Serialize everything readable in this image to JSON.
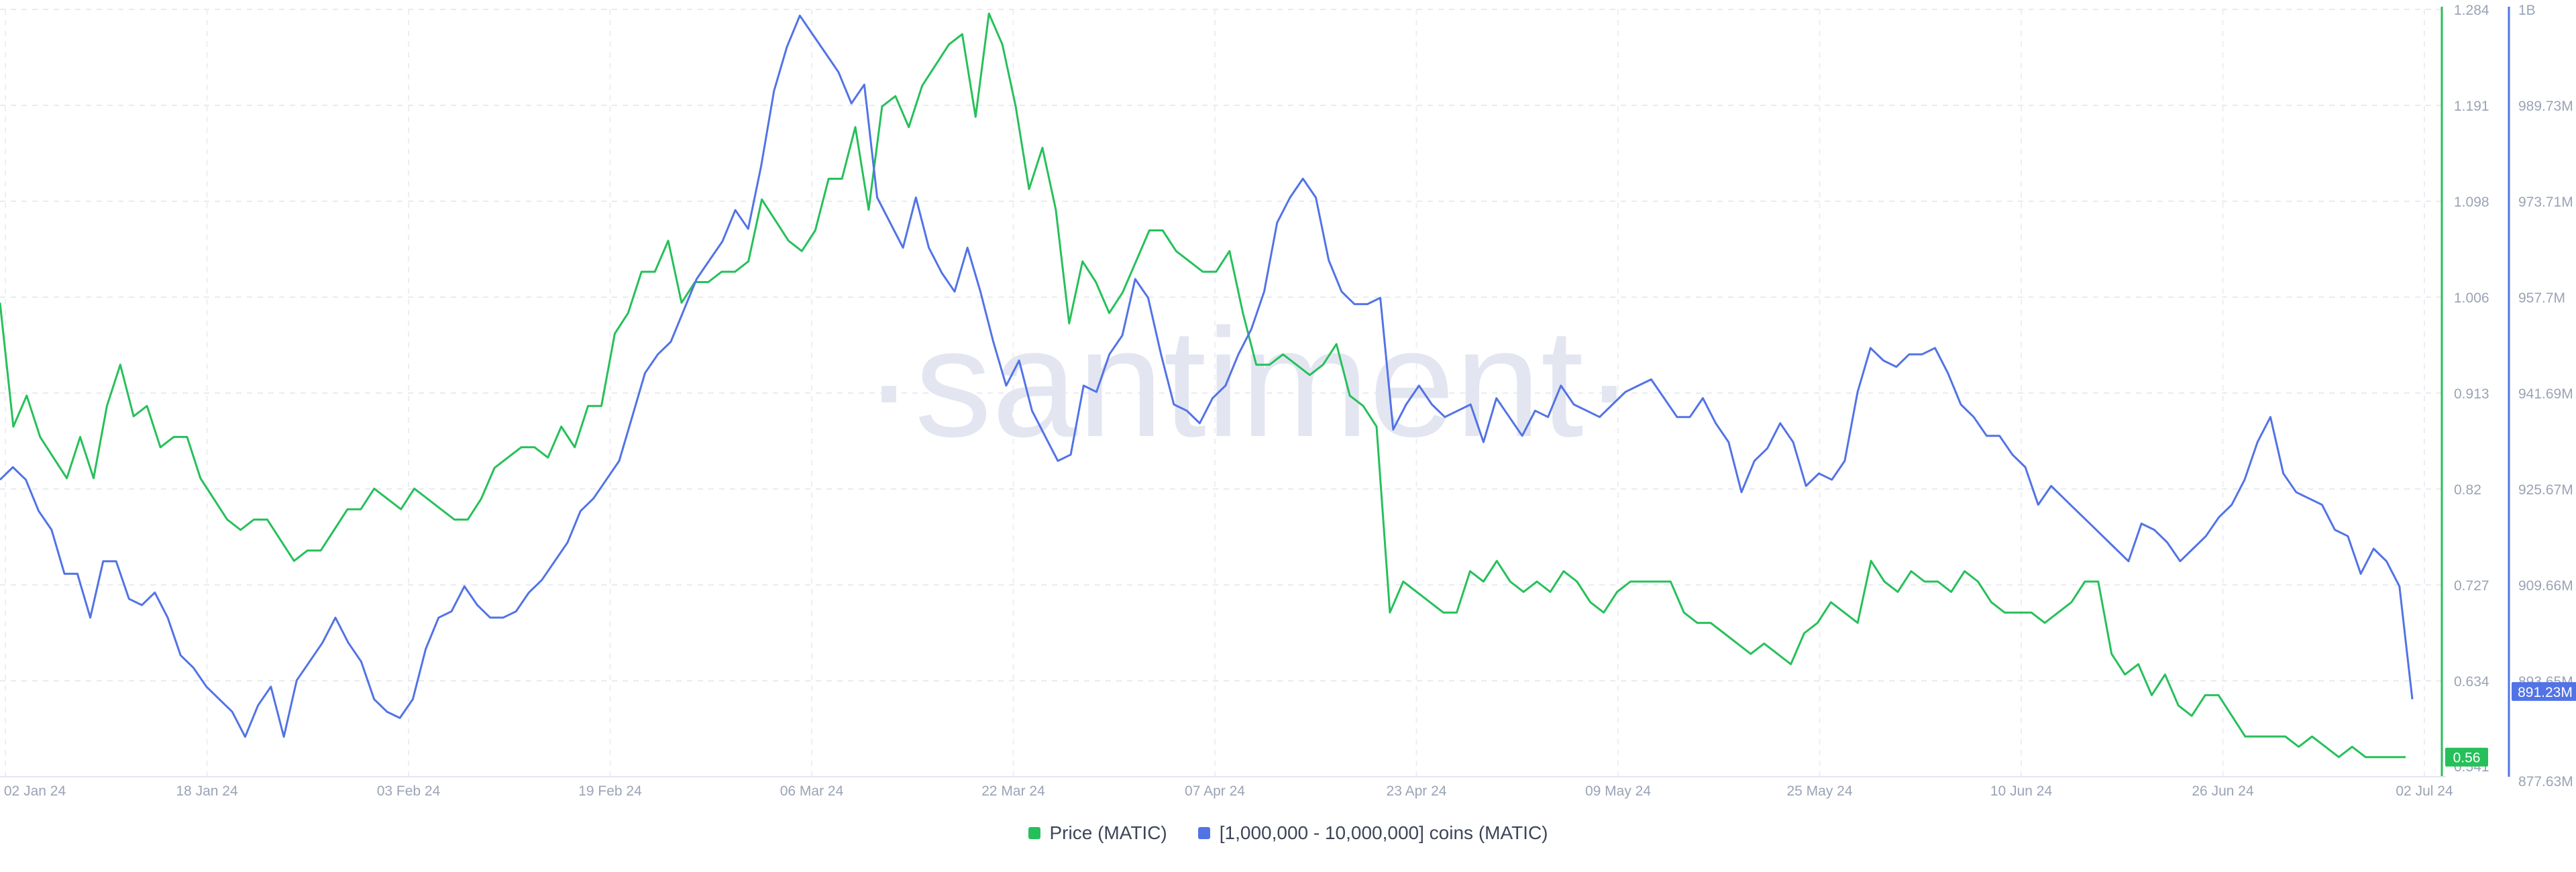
{
  "chart_data": {
    "type": "line",
    "watermark": "·santiment·",
    "x_tick_labels": [
      "02 Jan 24",
      "18 Jan 24",
      "03 Feb 24",
      "19 Feb 24",
      "06 Mar 24",
      "22 Mar 24",
      "07 Apr 24",
      "23 Apr 24",
      "09 May 24",
      "25 May 24",
      "10 Jun 24",
      "26 Jun 24",
      "02 Jul 24"
    ],
    "price_axis": {
      "ticks": [
        "1.284",
        "1.191",
        "1.098",
        "1.006",
        "0.913",
        "0.82",
        "0.727",
        "0.634",
        "0.541"
      ],
      "min": 0.541,
      "max": 1.284,
      "color": "#26c05a"
    },
    "holders_axis": {
      "ticks": [
        "1B",
        "989.73M",
        "973.71M",
        "957.7M",
        "941.69M",
        "925.67M",
        "909.66M",
        "893.65M",
        "877.63M"
      ],
      "min": 877.63,
      "max": 1000,
      "color": "#5273e6"
    },
    "last_values": {
      "price": "0.56",
      "holders": "891.23M"
    },
    "series": [
      {
        "name": "Price (MATIC)",
        "axis": "price",
        "color": "#26c05a",
        "values": [
          1.0,
          0.88,
          0.91,
          0.87,
          0.85,
          0.83,
          0.87,
          0.83,
          0.9,
          0.94,
          0.89,
          0.9,
          0.86,
          0.87,
          0.87,
          0.83,
          0.81,
          0.79,
          0.78,
          0.79,
          0.79,
          0.77,
          0.75,
          0.76,
          0.76,
          0.78,
          0.8,
          0.8,
          0.82,
          0.81,
          0.8,
          0.82,
          0.81,
          0.8,
          0.79,
          0.79,
          0.81,
          0.84,
          0.85,
          0.86,
          0.86,
          0.85,
          0.88,
          0.86,
          0.9,
          0.9,
          0.97,
          0.99,
          1.03,
          1.03,
          1.06,
          1.0,
          1.02,
          1.02,
          1.03,
          1.03,
          1.04,
          1.1,
          1.08,
          1.06,
          1.05,
          1.07,
          1.12,
          1.12,
          1.17,
          1.09,
          1.19,
          1.2,
          1.17,
          1.21,
          1.23,
          1.25,
          1.26,
          1.18,
          1.28,
          1.25,
          1.19,
          1.11,
          1.15,
          1.09,
          0.98,
          1.04,
          1.02,
          0.99,
          1.01,
          1.04,
          1.07,
          1.07,
          1.05,
          1.04,
          1.03,
          1.03,
          1.05,
          0.99,
          0.94,
          0.94,
          0.95,
          0.94,
          0.93,
          0.94,
          0.96,
          0.91,
          0.9,
          0.88,
          0.7,
          0.73,
          0.72,
          0.71,
          0.7,
          0.7,
          0.74,
          0.73,
          0.75,
          0.73,
          0.72,
          0.73,
          0.72,
          0.74,
          0.73,
          0.71,
          0.7,
          0.72,
          0.73,
          0.73,
          0.73,
          0.73,
          0.7,
          0.69,
          0.69,
          0.68,
          0.67,
          0.66,
          0.67,
          0.66,
          0.65,
          0.68,
          0.69,
          0.71,
          0.7,
          0.69,
          0.75,
          0.73,
          0.72,
          0.74,
          0.73,
          0.73,
          0.72,
          0.74,
          0.73,
          0.71,
          0.7,
          0.7,
          0.7,
          0.69,
          0.7,
          0.71,
          0.73,
          0.73,
          0.66,
          0.64,
          0.65,
          0.62,
          0.64,
          0.61,
          0.6,
          0.62,
          0.62,
          0.6,
          0.58,
          0.58,
          0.58,
          0.58,
          0.57,
          0.58,
          0.57,
          0.56,
          0.57,
          0.56,
          0.56,
          0.56,
          0.56
        ]
      },
      {
        "name": "[1,000,000 - 10,000,000] coins (MATIC)",
        "axis": "holders",
        "color": "#5273e6",
        "values": [
          925,
          927,
          925,
          920,
          917,
          910,
          910,
          903,
          912,
          912,
          906,
          905,
          907,
          903,
          897,
          895,
          892,
          890,
          888,
          884,
          889,
          892,
          884,
          893,
          896,
          899,
          903,
          899,
          896,
          890,
          888,
          887,
          890,
          898,
          903,
          904,
          908,
          905,
          903,
          903,
          904,
          907,
          909,
          912,
          915,
          920,
          922,
          925,
          928,
          935,
          942,
          945,
          947,
          952,
          957,
          960,
          963,
          968,
          965,
          975,
          987,
          994,
          999,
          996,
          993,
          990,
          985,
          988,
          970,
          966,
          962,
          970,
          962,
          958,
          955,
          962,
          955,
          947,
          940,
          944,
          936,
          932,
          928,
          929,
          940,
          939,
          945,
          948,
          957,
          954,
          945,
          937,
          936,
          934,
          938,
          940,
          945,
          949,
          955,
          966,
          970,
          973,
          970,
          960,
          955,
          953,
          953,
          954,
          933,
          937,
          940,
          937,
          935,
          936,
          937,
          931,
          938,
          935,
          932,
          936,
          935,
          940,
          937,
          936,
          935,
          937,
          939,
          940,
          941,
          938,
          935,
          935,
          938,
          934,
          931,
          923,
          928,
          930,
          934,
          931,
          924,
          926,
          925,
          928,
          939,
          946,
          944,
          943,
          945,
          945,
          946,
          942,
          937,
          935,
          932,
          932,
          929,
          927,
          921,
          924,
          922,
          920,
          918,
          916,
          914,
          912,
          918,
          917,
          915,
          912,
          914,
          916,
          919,
          921,
          925,
          931,
          935,
          926,
          923,
          922,
          921,
          917,
          916,
          910,
          914,
          912,
          908,
          890
        ]
      }
    ]
  },
  "legend": [
    {
      "label": "Price (MATIC)",
      "color": "#26c05a"
    },
    {
      "label": "[1,000,000 - 10,000,000] coins (MATIC)",
      "color": "#5273e6"
    }
  ]
}
